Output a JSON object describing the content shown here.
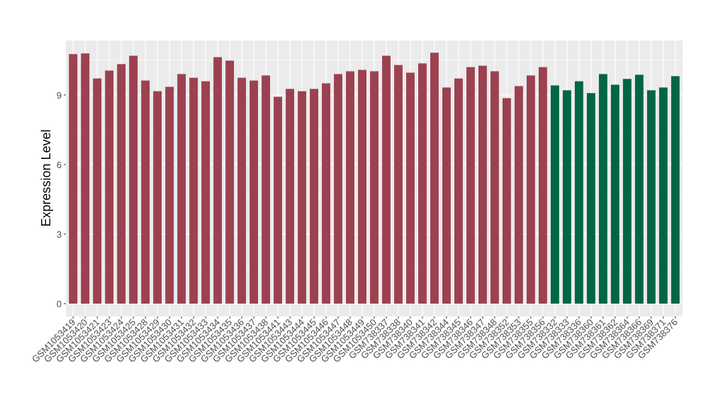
{
  "chart_data": {
    "type": "bar",
    "title": "",
    "xlabel": "",
    "ylabel": "Expression Level",
    "ylim": [
      -0.55,
      11.35
    ],
    "yticks": [
      0,
      3,
      6,
      9
    ],
    "grid": true,
    "colors": {
      "group1": "#9c4150",
      "group2": "#006643",
      "panel": "#ebebeb"
    },
    "categories": [
      "GSM1053419",
      "GSM1053420",
      "GSM1053421",
      "GSM1053423",
      "GSM1053424",
      "GSM1053425",
      "GSM1053428",
      "GSM1053429",
      "GSM1053430",
      "GSM1053431",
      "GSM1053432",
      "GSM1053433",
      "GSM1053434",
      "GSM1053435",
      "GSM1053436",
      "GSM1053437",
      "GSM1053438",
      "GSM1053441",
      "GSM1053443",
      "GSM1053444",
      "GSM1053445",
      "GSM1053446",
      "GSM1053447",
      "GSM1053448",
      "GSM1053449",
      "GSM1053450",
      "GSM738337",
      "GSM738338",
      "GSM738340",
      "GSM738341",
      "GSM738342",
      "GSM738344",
      "GSM738345",
      "GSM738346",
      "GSM738347",
      "GSM738348",
      "GSM738352",
      "GSM738353",
      "GSM738355",
      "GSM738356",
      "GSM738332",
      "GSM738333",
      "GSM738336",
      "GSM738360",
      "GSM738361",
      "GSM738362",
      "GSM738364",
      "GSM738366",
      "GSM738369",
      "GSM738371",
      "GSM738376"
    ],
    "values": [
      10.76,
      10.79,
      9.71,
      10.05,
      10.33,
      10.69,
      9.62,
      9.16,
      9.35,
      9.9,
      9.74,
      9.59,
      10.63,
      10.48,
      9.74,
      9.62,
      9.84,
      8.92,
      9.26,
      9.16,
      9.26,
      9.5,
      9.9,
      10.02,
      10.08,
      10.02,
      10.69,
      10.29,
      9.96,
      10.36,
      10.82,
      9.32,
      9.71,
      10.2,
      10.26,
      10.02,
      8.86,
      9.38,
      9.84,
      10.2,
      9.41,
      9.2,
      9.59,
      9.08,
      9.9,
      9.44,
      9.69,
      9.87,
      9.2,
      9.32,
      9.81
    ],
    "groups": [
      "group1",
      "group1",
      "group1",
      "group1",
      "group1",
      "group1",
      "group1",
      "group1",
      "group1",
      "group1",
      "group1",
      "group1",
      "group1",
      "group1",
      "group1",
      "group1",
      "group1",
      "group1",
      "group1",
      "group1",
      "group1",
      "group1",
      "group1",
      "group1",
      "group1",
      "group1",
      "group1",
      "group1",
      "group1",
      "group1",
      "group1",
      "group1",
      "group1",
      "group1",
      "group1",
      "group1",
      "group1",
      "group1",
      "group1",
      "group1",
      "group2",
      "group2",
      "group2",
      "group2",
      "group2",
      "group2",
      "group2",
      "group2",
      "group2",
      "group2",
      "group2"
    ]
  }
}
